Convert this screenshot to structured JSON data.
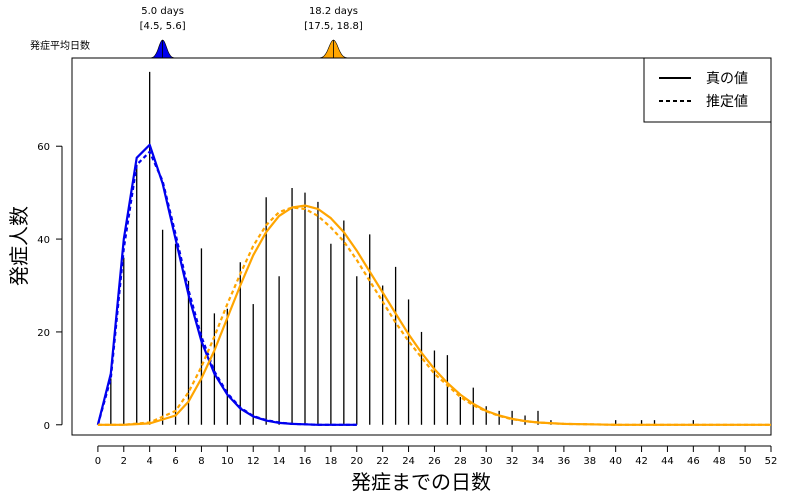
{
  "chart_data": {
    "type": "bar",
    "xlabel": "発症までの日数",
    "ylabel": "発症人数",
    "xlim": [
      -2,
      52
    ],
    "ylim": [
      -2.2,
      79
    ],
    "x_ticks": [
      0,
      2,
      4,
      6,
      8,
      10,
      12,
      14,
      16,
      18,
      20,
      22,
      24,
      26,
      28,
      30,
      32,
      34,
      36,
      38,
      40,
      42,
      44,
      46,
      48,
      50,
      52
    ],
    "y_ticks": [
      0,
      20,
      40,
      60
    ],
    "bars": {
      "x": [
        0,
        1,
        2,
        3,
        4,
        5,
        6,
        7,
        8,
        9,
        10,
        11,
        12,
        13,
        14,
        15,
        16,
        17,
        18,
        19,
        20,
        21,
        22,
        23,
        24,
        25,
        26,
        27,
        28,
        29,
        30,
        31,
        32,
        33,
        34,
        35,
        36,
        37,
        38,
        39,
        40,
        41,
        42,
        43,
        44,
        45,
        46,
        47,
        48,
        49,
        50,
        51,
        52
      ],
      "values": [
        0,
        10,
        36,
        56,
        76,
        42,
        39,
        31,
        38,
        24,
        25,
        35,
        26,
        49,
        32,
        51,
        50,
        48,
        39,
        44,
        32,
        41,
        30,
        34,
        27,
        20,
        16,
        15,
        6,
        8,
        4,
        3,
        3,
        2,
        3,
        1,
        0,
        0,
        0,
        0,
        1,
        0,
        1,
        1,
        0,
        0,
        1,
        0,
        0,
        0,
        0,
        0,
        0
      ]
    },
    "series": [
      {
        "name": "真の値",
        "color": "#0000ee",
        "dash": "solid",
        "x": [
          0,
          1,
          2,
          3,
          4,
          5,
          6,
          7,
          8,
          9,
          10,
          11,
          12,
          13,
          14,
          15,
          16,
          17,
          18,
          19,
          20
        ],
        "values": [
          0,
          11,
          40,
          57.5,
          60.3,
          52,
          40,
          28,
          18,
          11,
          6.5,
          3.5,
          1.8,
          0.9,
          0.4,
          0.2,
          0.1,
          0,
          0,
          0,
          0
        ]
      },
      {
        "name": "推定値",
        "color": "#0000ee",
        "dash": "dashed",
        "x": [
          0,
          1,
          2,
          3,
          4,
          5,
          6,
          7,
          8,
          9,
          10,
          11,
          12,
          13,
          14,
          15,
          16,
          17,
          18,
          19,
          20
        ],
        "values": [
          0,
          10,
          38,
          56,
          58.8,
          52.5,
          41,
          29,
          19,
          11.5,
          6.8,
          3.7,
          1.9,
          1,
          0.5,
          0.2,
          0.1,
          0,
          0,
          0,
          0
        ]
      },
      {
        "name": "真の値",
        "color": "#ffa500",
        "dash": "solid",
        "x": [
          0,
          2,
          4,
          6,
          7,
          8,
          9,
          10,
          11,
          12,
          13,
          14,
          15,
          16,
          17,
          18,
          19,
          20,
          21,
          22,
          23,
          24,
          25,
          26,
          27,
          28,
          29,
          30,
          31,
          32,
          33,
          34,
          36,
          38,
          40,
          44,
          48,
          52
        ],
        "values": [
          0,
          0,
          0.3,
          2,
          5,
          10,
          16,
          23,
          30,
          36.5,
          41.5,
          45,
          46.8,
          47.2,
          46.5,
          44.5,
          41.5,
          37.5,
          33,
          28.5,
          24,
          19.5,
          15.5,
          12,
          9,
          6.5,
          4.5,
          3,
          2,
          1.3,
          0.8,
          0.5,
          0.2,
          0.1,
          0,
          0,
          0,
          0
        ]
      },
      {
        "name": "推定値",
        "color": "#ffa500",
        "dash": "dashed",
        "x": [
          0,
          2,
          4,
          6,
          7,
          8,
          9,
          10,
          11,
          12,
          13,
          14,
          15,
          16,
          17,
          18,
          19,
          20,
          21,
          22,
          23,
          24,
          25,
          26,
          27,
          28,
          29,
          30,
          31,
          32,
          33,
          34,
          36,
          38,
          40,
          44,
          48,
          52
        ],
        "values": [
          0,
          0,
          0.5,
          3,
          7,
          12.5,
          19,
          26,
          32.5,
          38.5,
          43,
          45.8,
          46.8,
          46.5,
          45,
          42.5,
          39.5,
          35.5,
          31,
          26.5,
          22,
          18,
          14.5,
          11,
          8.5,
          6,
          4.2,
          2.9,
          1.9,
          1.2,
          0.8,
          0.5,
          0.2,
          0.1,
          0,
          0,
          0,
          0
        ]
      }
    ],
    "mean_estimates": {
      "label": "発症平均日数",
      "items": [
        {
          "x": 5.0,
          "sd": 0.3,
          "color": "#0000ee",
          "line1": "5.0 days",
          "line2": "[4.5, 5.6]"
        },
        {
          "x": 18.2,
          "sd": 0.35,
          "color": "#ffa500",
          "line1": "18.2 days",
          "line2": "[17.5, 18.8]"
        }
      ]
    },
    "legend": {
      "position": "top-right",
      "entries": [
        {
          "label": "真の値",
          "dash": "solid"
        },
        {
          "label": "推定値",
          "dash": "dashed"
        }
      ]
    }
  }
}
